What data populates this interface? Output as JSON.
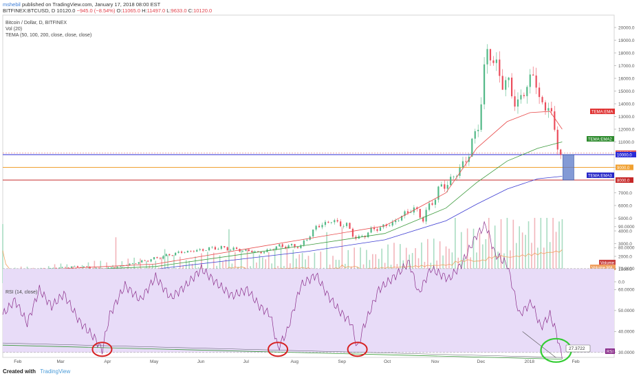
{
  "header": {
    "author": "mshebil",
    "published": "published on TradingView.com, January 17, 2018 08:00 EST",
    "symbol": "BITFINEX:BTCUSD, D",
    "last": "10120.0",
    "change": "−945.0 (−8.54%)",
    "o_label": "O:",
    "o": "11065.0",
    "h_label": "H:",
    "h": "11497.0",
    "l_label": "L:",
    "l": "9633.0",
    "c_label": "C:",
    "c": "10120.0"
  },
  "overlays": {
    "line1": "Bitcoin / Dollar, D, BITFINEX",
    "line2": "Vol (20)",
    "line3": "TEMA (50, 100, 200, close, close, close)",
    "rsi": "RSI (14, close)"
  },
  "footer": {
    "created": "Created with",
    "brand": "TradingView"
  },
  "colors": {
    "up": "#53b987",
    "down": "#eb4d5c",
    "ema1": "#e84a4a",
    "ema2": "#3c9a3c",
    "ema3": "#3c3cd2",
    "rsi": "#8a2d8a",
    "rsi_band": "#e8dcf8",
    "line10000": "#2b2bd6",
    "line9000": "#f0a030",
    "line8000": "#c62828",
    "box": "#5a78c8",
    "circle_red": "#d62020",
    "circle_green": "#33cc33"
  },
  "chart_data": [
    {
      "type": "candlestick",
      "title": "Bitcoin / Dollar, D, BITFINEX",
      "x_ticks": [
        "Feb",
        "Mar",
        "Apr",
        "May",
        "Jun",
        "Jul",
        "Aug",
        "Sep",
        "Oct",
        "Nov",
        "Dec",
        "2018",
        "Feb"
      ],
      "y_ticks": [
        "20000.0",
        "19000.0",
        "18000.0",
        "17000.0",
        "16000.0",
        "15000.0",
        "14000.0",
        "13000.0",
        "12000.0",
        "11000.0",
        "10000.0",
        "9000.0",
        "8000.0",
        "7000.0",
        "6000.0",
        "5000.0",
        "4000.0",
        "3000.0",
        "2000.0",
        "1000.0",
        "0.0"
      ],
      "ylim": [
        -500,
        20800
      ],
      "price_path": [
        [
          0,
          900
        ],
        [
          30,
          1050
        ],
        [
          50,
          1200
        ],
        [
          65,
          1000
        ],
        [
          80,
          1300
        ],
        [
          95,
          1700
        ],
        [
          115,
          2300
        ],
        [
          130,
          2500
        ],
        [
          140,
          2700
        ],
        [
          155,
          2500
        ],
        [
          170,
          2300
        ],
        [
          180,
          2800
        ],
        [
          195,
          2800
        ],
        [
          205,
          4300
        ],
        [
          215,
          4800
        ],
        [
          225,
          4400
        ],
        [
          232,
          3300
        ],
        [
          240,
          4000
        ],
        [
          255,
          4600
        ],
        [
          268,
          5800
        ],
        [
          275,
          5000
        ],
        [
          285,
          7200
        ],
        [
          295,
          8200
        ],
        [
          305,
          10000
        ],
        [
          312,
          13000
        ],
        [
          318,
          19300
        ],
        [
          322,
          16500
        ],
        [
          328,
          16000
        ],
        [
          334,
          14500
        ],
        [
          338,
          14000
        ],
        [
          343,
          15500
        ],
        [
          348,
          16500
        ],
        [
          352,
          13500
        ],
        [
          357,
          14200
        ],
        [
          361,
          11500
        ],
        [
          366,
          10120
        ]
      ],
      "series": [
        {
          "name": "TEMA:EMA",
          "values": [
            [
              0,
              800
            ],
            [
              100,
              1400
            ],
            [
              200,
              3400
            ],
            [
              250,
              4400
            ],
            [
              290,
              7000
            ],
            [
              310,
              10500
            ],
            [
              330,
              12600
            ],
            [
              345,
              13300
            ],
            [
              358,
              13400
            ],
            [
              366,
              12000
            ]
          ]
        },
        {
          "name": "TEMA:EMA2",
          "values": [
            [
              0,
              700
            ],
            [
              100,
              1200
            ],
            [
              200,
              2900
            ],
            [
              250,
              3800
            ],
            [
              290,
              5800
            ],
            [
              310,
              7800
            ],
            [
              330,
              9500
            ],
            [
              350,
              10500
            ],
            [
              366,
              11000
            ]
          ]
        },
        {
          "name": "TEMA:EMA3",
          "values": [
            [
              0,
              600
            ],
            [
              100,
              1000
            ],
            [
              200,
              2400
            ],
            [
              250,
              3300
            ],
            [
              290,
              4800
            ],
            [
              310,
              6100
            ],
            [
              330,
              7300
            ],
            [
              350,
              8100
            ],
            [
              366,
              8300
            ]
          ]
        }
      ],
      "levels": [
        {
          "label": "10120.0",
          "value": 10120
        },
        {
          "label": "10000.0",
          "value": 10000
        },
        {
          "label": "9000.0",
          "value": 9000
        },
        {
          "label": "8000.0",
          "value": 8000
        }
      ],
      "level_tags": [
        "TEMA:EMA",
        "TEMA:EMA2",
        "TEMA:EMA3"
      ],
      "volume_legend": [
        "Volume",
        "Volume MA"
      ]
    },
    {
      "type": "line",
      "title": "RSI (14, close)",
      "y_ticks": [
        "90.0000",
        "80.0000",
        "70.0000",
        "60.0000",
        "50.0000",
        "40.0000",
        "30.0000"
      ],
      "ylim": [
        26,
        93
      ],
      "band": [
        30,
        70
      ],
      "values": [
        [
          0,
          48
        ],
        [
          8,
          55
        ],
        [
          16,
          44
        ],
        [
          24,
          60
        ],
        [
          32,
          52
        ],
        [
          40,
          58
        ],
        [
          50,
          45
        ],
        [
          60,
          37
        ],
        [
          65,
          31
        ],
        [
          70,
          48
        ],
        [
          80,
          62
        ],
        [
          90,
          55
        ],
        [
          100,
          66
        ],
        [
          110,
          56
        ],
        [
          120,
          62
        ],
        [
          130,
          70
        ],
        [
          140,
          63
        ],
        [
          150,
          57
        ],
        [
          160,
          60
        ],
        [
          168,
          52
        ],
        [
          175,
          48
        ],
        [
          180,
          32
        ],
        [
          186,
          40
        ],
        [
          195,
          62
        ],
        [
          205,
          67
        ],
        [
          212,
          58
        ],
        [
          220,
          50
        ],
        [
          228,
          44
        ],
        [
          232,
          32
        ],
        [
          236,
          42
        ],
        [
          246,
          60
        ],
        [
          256,
          66
        ],
        [
          266,
          73
        ],
        [
          272,
          58
        ],
        [
          280,
          70
        ],
        [
          292,
          65
        ],
        [
          300,
          72
        ],
        [
          310,
          86
        ],
        [
          316,
          91
        ],
        [
          322,
          77
        ],
        [
          330,
          72
        ],
        [
          338,
          48
        ],
        [
          346,
          54
        ],
        [
          352,
          42
        ],
        [
          358,
          48
        ],
        [
          362,
          40
        ],
        [
          366,
          27
        ]
      ],
      "label": "RSI",
      "value_label": "27.3722"
    }
  ]
}
